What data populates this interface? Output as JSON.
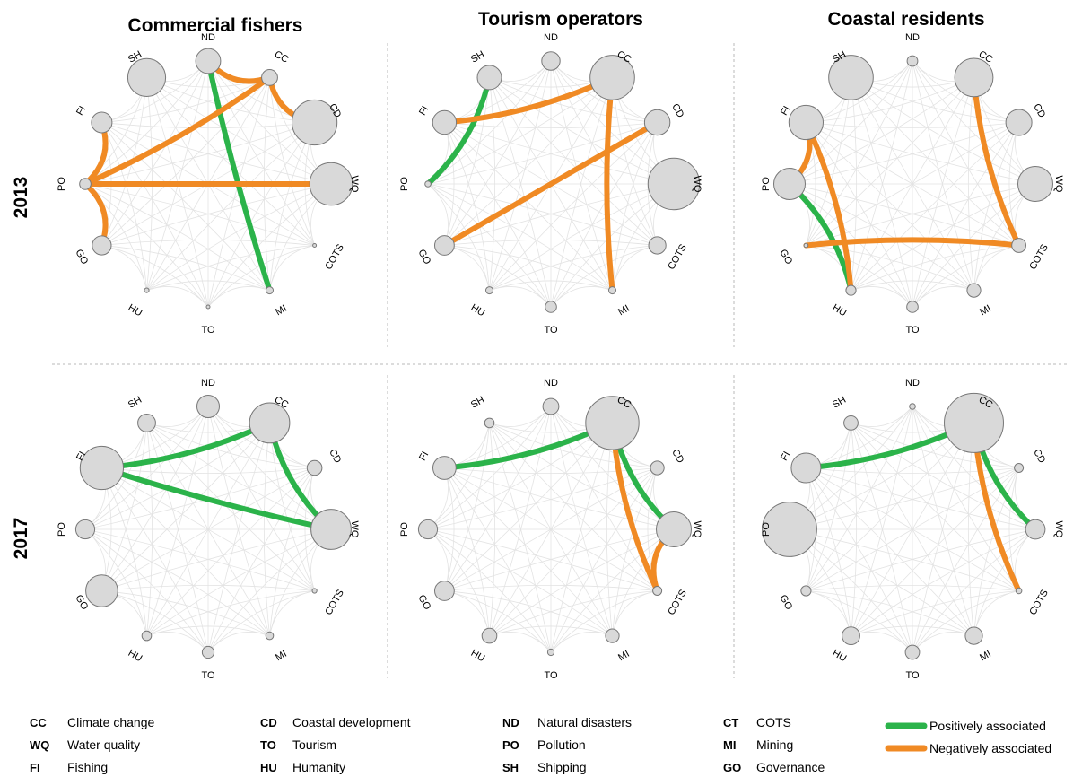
{
  "col_titles": [
    "Commercial fishers",
    "Tourism operators",
    "Coastal residents"
  ],
  "row_labels": [
    "2013",
    "2017"
  ],
  "colors": {
    "positive": "#2bb34a",
    "negative": "#f08a24",
    "node_fill": "#d9d9d9",
    "node_stroke": "#777777",
    "background_edge": "#e3e3e3",
    "divider": "#b9b9b9"
  },
  "legend_items": [
    {
      "abbr": "CC",
      "label": "Climate change"
    },
    {
      "abbr": "WQ",
      "label": "Water quality"
    },
    {
      "abbr": "FI",
      "label": "Fishing"
    },
    {
      "abbr": "CD",
      "label": "Coastal development"
    },
    {
      "abbr": "TO",
      "label": "Tourism"
    },
    {
      "abbr": "HU",
      "label": "Humanity"
    },
    {
      "abbr": "ND",
      "label": "Natural disasters"
    },
    {
      "abbr": "PO",
      "label": "Pollution"
    },
    {
      "abbr": "SH",
      "label": "Shipping"
    },
    {
      "abbr": "CT",
      "label": "COTS"
    },
    {
      "abbr": "MI",
      "label": "Mining"
    },
    {
      "abbr": "GO",
      "label": "Governance"
    }
  ],
  "edge_key": [
    {
      "type": "positive",
      "label": "Positively associated"
    },
    {
      "type": "negative",
      "label": "Negatively associated"
    }
  ],
  "node_order": [
    "ND",
    "CC",
    "CD",
    "WQ",
    "COTS",
    "MI",
    "TO",
    "HU",
    "GO",
    "PO",
    "FI",
    "SH"
  ],
  "chart_data": {
    "type": "network",
    "description_units": "node size = relative prominence (0-1), edges between themes",
    "panels": [
      {
        "group": "Commercial fishers",
        "year": "2013",
        "node_size": {
          "ND": 0.42,
          "CC": 0.27,
          "CD": 0.76,
          "WQ": 0.72,
          "COTS": 0.04,
          "MI": 0.12,
          "TO": 0.06,
          "HU": 0.08,
          "GO": 0.32,
          "PO": 0.19,
          "FI": 0.35,
          "SH": 0.64
        },
        "edges": [
          {
            "from": "ND",
            "to": "MI",
            "type": "positive"
          },
          {
            "from": "ND",
            "to": "CC",
            "type": "negative"
          },
          {
            "from": "CC",
            "to": "CD",
            "type": "negative"
          },
          {
            "from": "CC",
            "to": "PO",
            "type": "negative"
          },
          {
            "from": "PO",
            "to": "WQ",
            "type": "negative"
          },
          {
            "from": "PO",
            "to": "FI",
            "type": "negative"
          },
          {
            "from": "PO",
            "to": "GO",
            "type": "negative"
          }
        ]
      },
      {
        "group": "Tourism operators",
        "year": "2013",
        "node_size": {
          "ND": 0.31,
          "CC": 0.75,
          "CD": 0.43,
          "WQ": 0.87,
          "COTS": 0.29,
          "MI": 0.12,
          "TO": 0.19,
          "HU": 0.12,
          "GO": 0.33,
          "PO": 0.1,
          "FI": 0.4,
          "SH": 0.41
        },
        "edges": [
          {
            "from": "SH",
            "to": "PO",
            "type": "positive"
          },
          {
            "from": "FI",
            "to": "CC",
            "type": "negative"
          },
          {
            "from": "CC",
            "to": "MI",
            "type": "negative"
          },
          {
            "from": "GO",
            "to": "CD",
            "type": "negative"
          }
        ]
      },
      {
        "group": "Coastal residents",
        "year": "2013",
        "node_size": {
          "ND": 0.18,
          "CC": 0.65,
          "CD": 0.44,
          "WQ": 0.59,
          "COTS": 0.24,
          "MI": 0.23,
          "TO": 0.19,
          "HU": 0.17,
          "GO": 0.07,
          "PO": 0.53,
          "FI": 0.58,
          "SH": 0.75
        },
        "edges": [
          {
            "from": "PO",
            "to": "HU",
            "type": "positive"
          },
          {
            "from": "FI",
            "to": "PO",
            "type": "negative"
          },
          {
            "from": "FI",
            "to": "HU",
            "type": "negative"
          },
          {
            "from": "CC",
            "to": "COTS",
            "type": "negative"
          },
          {
            "from": "GO",
            "to": "COTS",
            "type": "negative"
          }
        ]
      },
      {
        "group": "Commercial fishers",
        "year": "2017",
        "node_size": {
          "ND": 0.38,
          "CC": 0.68,
          "CD": 0.25,
          "WQ": 0.68,
          "COTS": 0.08,
          "MI": 0.13,
          "TO": 0.2,
          "HU": 0.16,
          "GO": 0.54,
          "PO": 0.32,
          "FI": 0.73,
          "SH": 0.3
        },
        "edges": [
          {
            "from": "FI",
            "to": "CC",
            "type": "positive"
          },
          {
            "from": "FI",
            "to": "WQ",
            "type": "positive"
          },
          {
            "from": "CC",
            "to": "WQ",
            "type": "positive"
          }
        ]
      },
      {
        "group": "Tourism operators",
        "year": "2017",
        "node_size": {
          "ND": 0.27,
          "CC": 0.9,
          "CD": 0.23,
          "WQ": 0.59,
          "COTS": 0.15,
          "MI": 0.23,
          "TO": 0.11,
          "HU": 0.25,
          "GO": 0.33,
          "PO": 0.32,
          "FI": 0.39,
          "SH": 0.16
        },
        "edges": [
          {
            "from": "FI",
            "to": "CC",
            "type": "positive"
          },
          {
            "from": "CC",
            "to": "WQ",
            "type": "positive"
          },
          {
            "from": "CC",
            "to": "COTS",
            "type": "negative"
          },
          {
            "from": "WQ",
            "to": "COTS",
            "type": "negative"
          }
        ]
      },
      {
        "group": "Coastal residents",
        "year": "2017",
        "node_size": {
          "ND": 0.1,
          "CC": 1.0,
          "CD": 0.15,
          "WQ": 0.33,
          "COTS": 0.1,
          "MI": 0.29,
          "TO": 0.24,
          "HU": 0.3,
          "GO": 0.17,
          "PO": 0.92,
          "FI": 0.5,
          "SH": 0.24
        },
        "edges": [
          {
            "from": "FI",
            "to": "CC",
            "type": "positive"
          },
          {
            "from": "CC",
            "to": "WQ",
            "type": "positive"
          },
          {
            "from": "CC",
            "to": "COTS",
            "type": "negative"
          }
        ]
      }
    ]
  }
}
